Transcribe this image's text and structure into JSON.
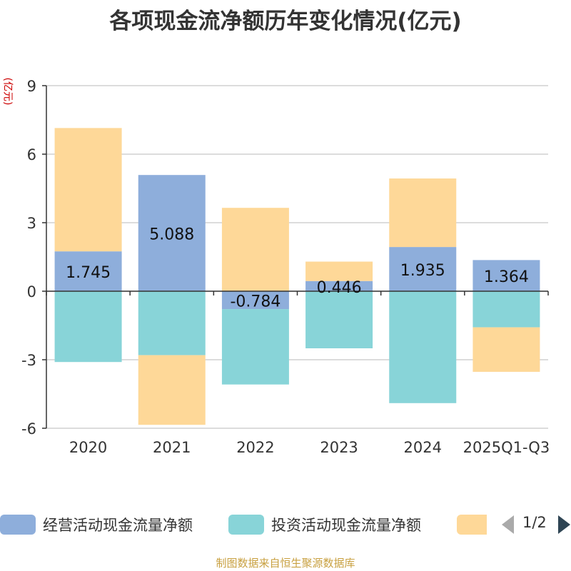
{
  "title": "各项现金流净额历年变化情况(亿元)",
  "y_unit": "(亿元)",
  "source": "制图数据来自恒生聚源数据库",
  "legend": {
    "items": [
      {
        "label": "经营活动现金流量净额",
        "color": "#8eaedb"
      },
      {
        "label": "投资活动现金流量净额",
        "color": "#88d4d8"
      },
      {
        "label": "",
        "color": "#fed898"
      }
    ],
    "page": "1/2"
  },
  "chart_data": {
    "type": "bar",
    "stacked": true,
    "categories": [
      "2020",
      "2021",
      "2022",
      "2023",
      "2024",
      "2025Q1-Q3"
    ],
    "series": [
      {
        "name": "经营活动现金流量净额",
        "color": "#8eaedb",
        "values": [
          1.745,
          5.088,
          -0.784,
          0.446,
          1.935,
          1.364
        ],
        "labels": [
          "1.745",
          "5.088",
          "-0.784",
          "0.446",
          "1.935",
          "1.364"
        ]
      },
      {
        "name": "投资活动现金流量净额",
        "color": "#88d4d8",
        "values": [
          -3.1,
          -2.8,
          -3.3,
          -2.5,
          -4.9,
          -1.58
        ]
      },
      {
        "color": "#fed898",
        "values": [
          5.4,
          -3.05,
          3.65,
          0.85,
          3.0,
          -1.95
        ]
      }
    ],
    "y_ticks": [
      "9",
      "6",
      "3",
      "0",
      "-3",
      "-6"
    ],
    "ylim": [
      -6,
      9
    ],
    "grid": true
  }
}
